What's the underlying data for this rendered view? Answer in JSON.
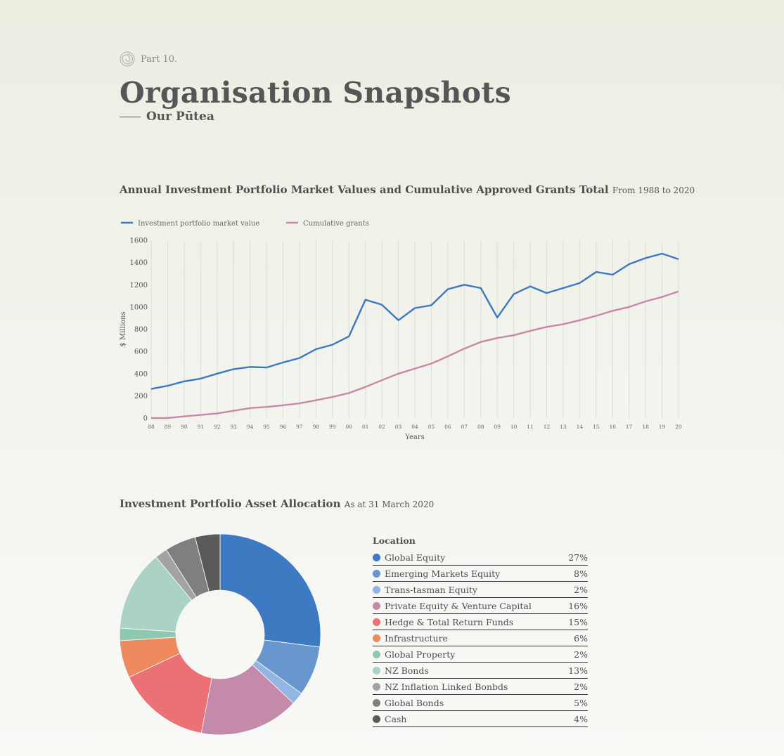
{
  "header": {
    "part_label": "Part 10.",
    "title": "Organisation Snapshots",
    "subtitle": "Our Pūtea"
  },
  "line_section": {
    "title": "Annual Investment Portfolio Market Values and Cumulative Approved Grants Total",
    "range_note": "From 1988 to 2020"
  },
  "pie_section": {
    "title": "Investment Portfolio Asset Allocation",
    "date_note": "As at 31 March 2020",
    "table_header": "Location"
  },
  "chart_data": [
    {
      "type": "line",
      "title": "Annual Investment Portfolio Market Values and Cumulative Approved Grants Total",
      "subtitle": "From 1988 to 2020",
      "xlabel": "Years",
      "ylabel": "$ Millions",
      "ylim": [
        0,
        1600
      ],
      "yticks": [
        0,
        200,
        400,
        600,
        800,
        1000,
        1200,
        1400,
        1600
      ],
      "grid": "vertical",
      "legend": "top-left",
      "x": [
        "88",
        "89",
        "90",
        "91",
        "92",
        "93",
        "94",
        "95",
        "96",
        "97",
        "98",
        "99",
        "00",
        "01",
        "02",
        "03",
        "04",
        "05",
        "06",
        "07",
        "08",
        "09",
        "10",
        "11",
        "12",
        "13",
        "14",
        "15",
        "16",
        "17",
        "18",
        "19",
        "20"
      ],
      "series": [
        {
          "name": "Investment portfolio market value",
          "color": "#3a78c2",
          "values": [
            262,
            290,
            330,
            355,
            400,
            440,
            460,
            455,
            500,
            540,
            620,
            660,
            735,
            1065,
            1020,
            880,
            990,
            1015,
            1160,
            1200,
            1170,
            905,
            1115,
            1185,
            1125,
            1170,
            1215,
            1315,
            1290,
            1385,
            1440,
            1480,
            1430
          ]
        },
        {
          "name": "Cumulative grants",
          "color": "#c887a7",
          "values": [
            0,
            0,
            15,
            28,
            42,
            65,
            90,
            100,
            115,
            132,
            160,
            190,
            225,
            280,
            340,
            400,
            445,
            490,
            555,
            625,
            685,
            720,
            745,
            785,
            820,
            845,
            880,
            920,
            965,
            1000,
            1050,
            1090,
            1140
          ]
        }
      ]
    },
    {
      "type": "pie",
      "title": "Investment Portfolio Asset Allocation",
      "subtitle": "As at 31 March 2020",
      "donut": true,
      "legend": "right",
      "series": [
        {
          "name": "Global Equity",
          "value": 27,
          "label": "27%",
          "color": "#3d7ac1"
        },
        {
          "name": "Emerging Markets Equity",
          "value": 8,
          "label": "8%",
          "color": "#6896ce"
        },
        {
          "name": "Trans-tasman Equity",
          "value": 2,
          "label": "2%",
          "color": "#93b5e2"
        },
        {
          "name": "Private Equity & Venture Capital",
          "value": 16,
          "label": "16%",
          "color": "#c38aaa"
        },
        {
          "name": "Hedge & Total Return Funds",
          "value": 15,
          "label": "15%",
          "color": "#ec7174"
        },
        {
          "name": "Infrastructure",
          "value": 6,
          "label": "6%",
          "color": "#ee8a5d"
        },
        {
          "name": "Global Property",
          "value": 2,
          "label": "2%",
          "color": "#8ec8b1"
        },
        {
          "name": "NZ Bonds",
          "value": 13,
          "label": "13%",
          "color": "#abd3c3"
        },
        {
          "name": "NZ Inflation Linked Bonbds",
          "value": 2,
          "label": "2%",
          "color": "#a3a3a3"
        },
        {
          "name": "Global Bonds",
          "value": 5,
          "label": "5%",
          "color": "#7f7f7f"
        },
        {
          "name": "Cash",
          "value": 4,
          "label": "4%",
          "color": "#5a5a5a"
        }
      ]
    }
  ]
}
